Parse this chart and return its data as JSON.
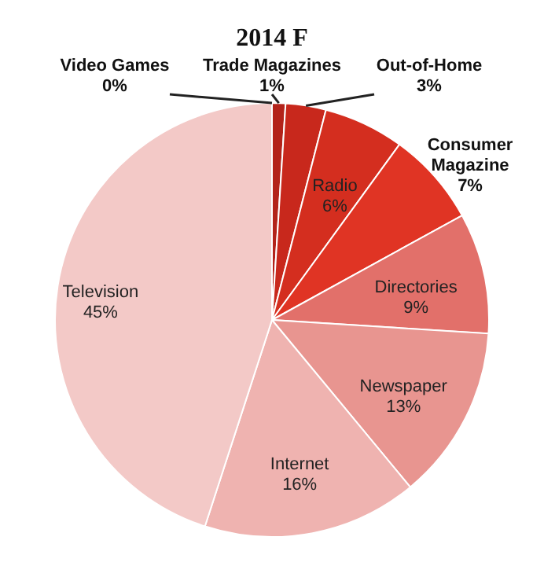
{
  "chart_data": {
    "type": "pie",
    "title": "2014 F",
    "categories": [
      "Video Games",
      "Trade Magazines",
      "Out-of-Home",
      "Radio",
      "Consumer Magazine",
      "Directories",
      "Newspaper",
      "Internet",
      "Television"
    ],
    "values": [
      0,
      1,
      3,
      6,
      7,
      9,
      13,
      16,
      45
    ],
    "value_labels": [
      "0%",
      "1%",
      "3%",
      "6%",
      "7%",
      "9%",
      "13%",
      "16%",
      "45%"
    ],
    "colors": [
      "#8b1a12",
      "#b3231a",
      "#c8281c",
      "#d42e1f",
      "#e03424",
      "#e2706a",
      "#e89590",
      "#efb3b0",
      "#f3c9c7"
    ]
  }
}
